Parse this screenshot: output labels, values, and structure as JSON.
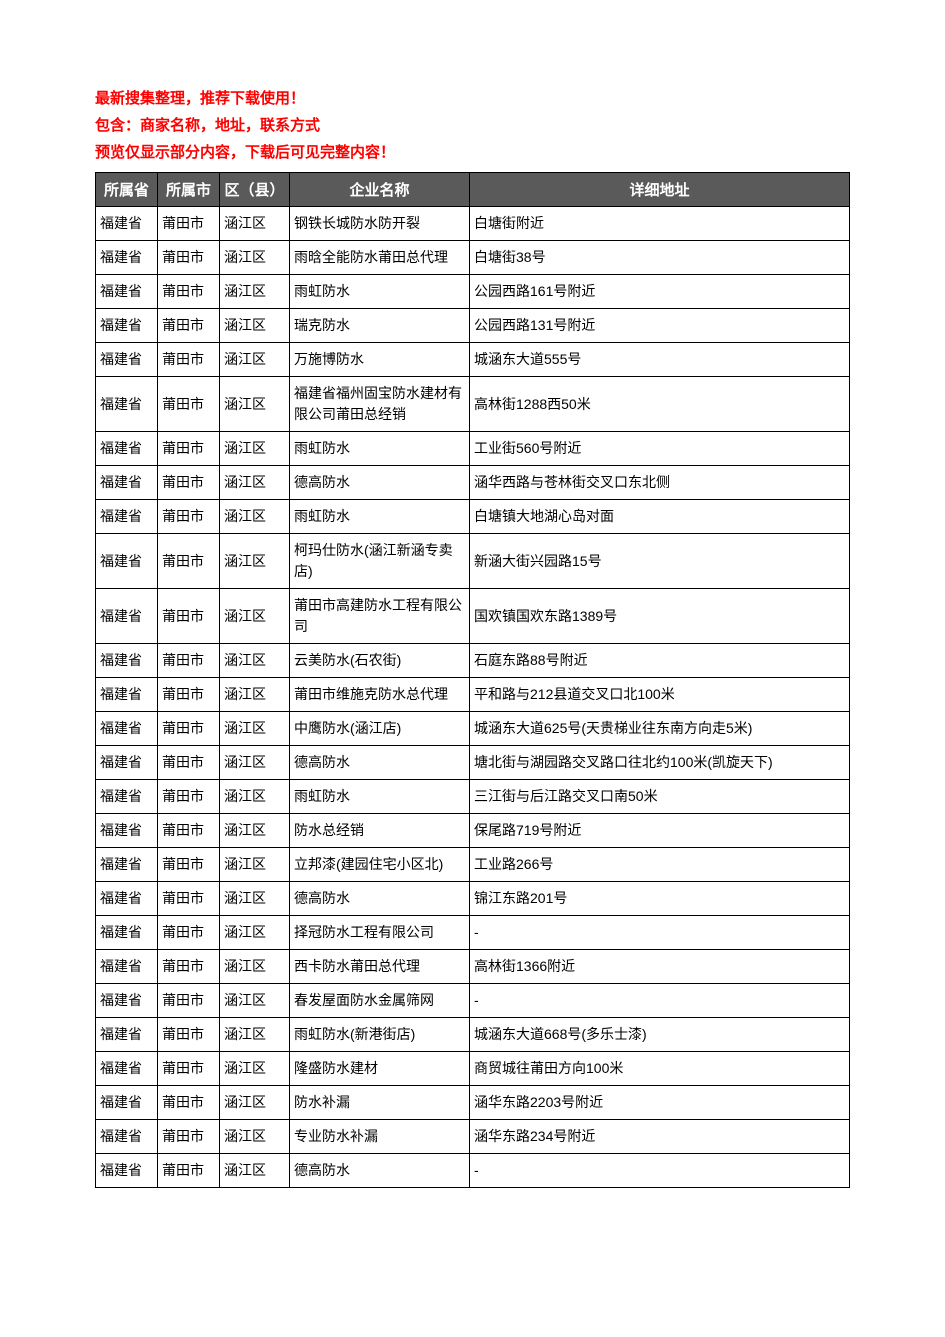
{
  "intro": {
    "line1": "最新搜集整理，推荐下载使用！",
    "line2": "包含：商家名称，地址，联系方式",
    "line3": "预览仅显示部分内容，下载后可见完整内容！"
  },
  "table": {
    "headers": {
      "province": "所属省",
      "city": "所属市",
      "district": "区（县）",
      "name": "企业名称",
      "address": "详细地址"
    },
    "header_bg": "#5a5a5a",
    "header_fg": "#ffffff",
    "border_color": "#000000",
    "intro_color": "#ff0000",
    "font_size_header": 15,
    "font_size_cell": 14,
    "rows": [
      {
        "province": "福建省",
        "city": "莆田市",
        "district": "涵江区",
        "name": "钢铁长城防水防开裂",
        "address": "白塘街附近"
      },
      {
        "province": "福建省",
        "city": "莆田市",
        "district": "涵江区",
        "name": "雨晗全能防水莆田总代理",
        "address": "白塘街38号"
      },
      {
        "province": "福建省",
        "city": "莆田市",
        "district": "涵江区",
        "name": "雨虹防水",
        "address": "公园西路161号附近"
      },
      {
        "province": "福建省",
        "city": "莆田市",
        "district": "涵江区",
        "name": "瑞克防水",
        "address": "公园西路131号附近"
      },
      {
        "province": "福建省",
        "city": "莆田市",
        "district": "涵江区",
        "name": "万施博防水",
        "address": "城涵东大道555号"
      },
      {
        "province": "福建省",
        "city": "莆田市",
        "district": "涵江区",
        "name": "福建省福州固宝防水建材有限公司莆田总经销",
        "address": "高林街1288西50米"
      },
      {
        "province": "福建省",
        "city": "莆田市",
        "district": "涵江区",
        "name": "雨虹防水",
        "address": "工业街560号附近"
      },
      {
        "province": "福建省",
        "city": "莆田市",
        "district": "涵江区",
        "name": "德高防水",
        "address": "涵华西路与苍林街交叉口东北侧"
      },
      {
        "province": "福建省",
        "city": "莆田市",
        "district": "涵江区",
        "name": "雨虹防水",
        "address": "白塘镇大地湖心岛对面"
      },
      {
        "province": "福建省",
        "city": "莆田市",
        "district": "涵江区",
        "name": "柯玛仕防水(涵江新涵专卖店)",
        "address": "新涵大街兴园路15号"
      },
      {
        "province": "福建省",
        "city": "莆田市",
        "district": "涵江区",
        "name": "莆田市高建防水工程有限公司",
        "address": "国欢镇国欢东路1389号"
      },
      {
        "province": "福建省",
        "city": "莆田市",
        "district": "涵江区",
        "name": "云美防水(石农街)",
        "address": "石庭东路88号附近"
      },
      {
        "province": "福建省",
        "city": "莆田市",
        "district": "涵江区",
        "name": "莆田市维施克防水总代理",
        "address": "平和路与212县道交叉口北100米"
      },
      {
        "province": "福建省",
        "city": "莆田市",
        "district": "涵江区",
        "name": "中鹰防水(涵江店)",
        "address": "城涵东大道625号(天贵梯业往东南方向走5米)"
      },
      {
        "province": "福建省",
        "city": "莆田市",
        "district": "涵江区",
        "name": "德高防水",
        "address": "塘北街与湖园路交叉路口往北约100米(凯旋天下)"
      },
      {
        "province": "福建省",
        "city": "莆田市",
        "district": "涵江区",
        "name": "雨虹防水",
        "address": "三江街与后江路交叉口南50米"
      },
      {
        "province": "福建省",
        "city": "莆田市",
        "district": "涵江区",
        "name": "防水总经销",
        "address": "保尾路719号附近"
      },
      {
        "province": "福建省",
        "city": "莆田市",
        "district": "涵江区",
        "name": "立邦漆(建园住宅小区北)",
        "address": "工业路266号"
      },
      {
        "province": "福建省",
        "city": "莆田市",
        "district": "涵江区",
        "name": "德高防水",
        "address": "锦江东路201号"
      },
      {
        "province": "福建省",
        "city": "莆田市",
        "district": "涵江区",
        "name": "择冠防水工程有限公司",
        "address": "-"
      },
      {
        "province": "福建省",
        "city": "莆田市",
        "district": "涵江区",
        "name": "西卡防水莆田总代理",
        "address": "高林街1366附近"
      },
      {
        "province": "福建省",
        "city": "莆田市",
        "district": "涵江区",
        "name": "春发屋面防水金属筛网",
        "address": "-"
      },
      {
        "province": "福建省",
        "city": "莆田市",
        "district": "涵江区",
        "name": "雨虹防水(新港街店)",
        "address": "城涵东大道668号(多乐士漆)"
      },
      {
        "province": "福建省",
        "city": "莆田市",
        "district": "涵江区",
        "name": "隆盛防水建材",
        "address": "商贸城往莆田方向100米"
      },
      {
        "province": "福建省",
        "city": "莆田市",
        "district": "涵江区",
        "name": "防水补漏",
        "address": "涵华东路2203号附近"
      },
      {
        "province": "福建省",
        "city": "莆田市",
        "district": "涵江区",
        "name": "专业防水补漏",
        "address": "涵华东路234号附近"
      },
      {
        "province": "福建省",
        "city": "莆田市",
        "district": "涵江区",
        "name": "德高防水",
        "address": "-"
      }
    ]
  }
}
